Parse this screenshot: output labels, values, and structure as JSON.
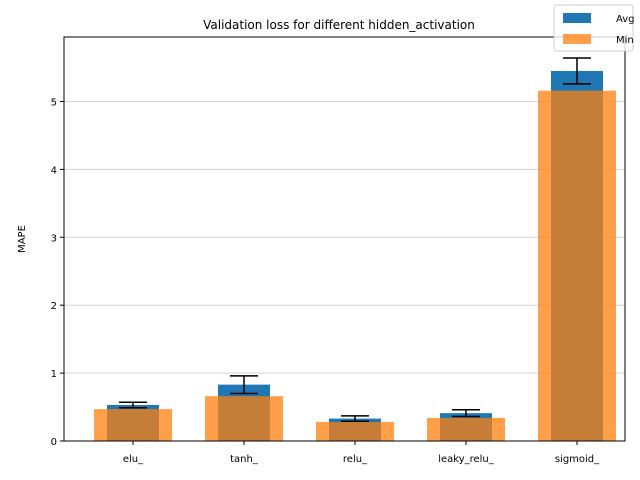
{
  "chart_data": {
    "type": "bar",
    "title": "Validation loss for different hidden_activation",
    "xlabel": "",
    "ylabel": "MAPE",
    "categories": [
      "elu_",
      "tanh_",
      "relu_",
      "leaky_relu_",
      "sigmoid_"
    ],
    "series": [
      {
        "name": "Avg",
        "color": "#1f77b4",
        "values": [
          0.53,
          0.83,
          0.33,
          0.41,
          5.45
        ],
        "error": [
          0.04,
          0.13,
          0.04,
          0.05,
          0.19
        ]
      },
      {
        "name": "Min",
        "color": "#ff7f0e",
        "opacity": 0.75,
        "values": [
          0.47,
          0.66,
          0.28,
          0.34,
          5.16
        ]
      }
    ],
    "ylim": [
      0,
      5.95
    ],
    "yticks": [
      "0",
      "1",
      "2",
      "3",
      "4",
      "5"
    ],
    "grid": "y",
    "legend": "top-right"
  }
}
